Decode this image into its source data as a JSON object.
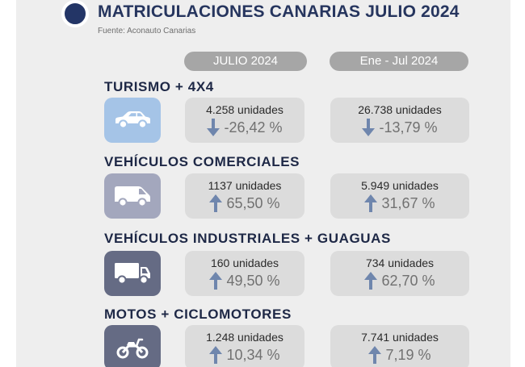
{
  "header": {
    "title": "MATRICULACIONES CANARIAS JULIO 2024",
    "source": "Fuente: Aconauto Canarias"
  },
  "columns": {
    "month": "JULIO 2024",
    "ytd": "Ene - Jul 2024"
  },
  "colors": {
    "navy": "#233566",
    "arrow": "#6f86ad"
  },
  "sections": [
    {
      "title": "TURISMO + 4X4",
      "icon": "car-icon",
      "month": {
        "units": "4.258 unidades",
        "pct": "-26,42 %",
        "trend": "down"
      },
      "ytd": {
        "units": "26.738 unidades",
        "pct": "-13,79 %",
        "trend": "down"
      }
    },
    {
      "title": "VEHÍCULOS COMERCIALES",
      "icon": "van-icon",
      "month": {
        "units": "1137 unidades",
        "pct": "65,50 %",
        "trend": "up"
      },
      "ytd": {
        "units": "5.949 unidades",
        "pct": "31,67 %",
        "trend": "up"
      }
    },
    {
      "title": "VEHÍCULOS INDUSTRIALES + GUAGUAS",
      "icon": "truck-icon",
      "month": {
        "units": "160 unidades",
        "pct": "49,50 %",
        "trend": "up"
      },
      "ytd": {
        "units": "734 unidades",
        "pct": "62,70 %",
        "trend": "up"
      }
    },
    {
      "title": "MOTOS + CICLOMOTORES",
      "icon": "motorcycle-icon",
      "month": {
        "units": "1.248 unidades",
        "pct": "10,34 %",
        "trend": "up"
      },
      "ytd": {
        "units": "7.741 unidades",
        "pct": "7,19 %",
        "trend": "up"
      }
    }
  ]
}
